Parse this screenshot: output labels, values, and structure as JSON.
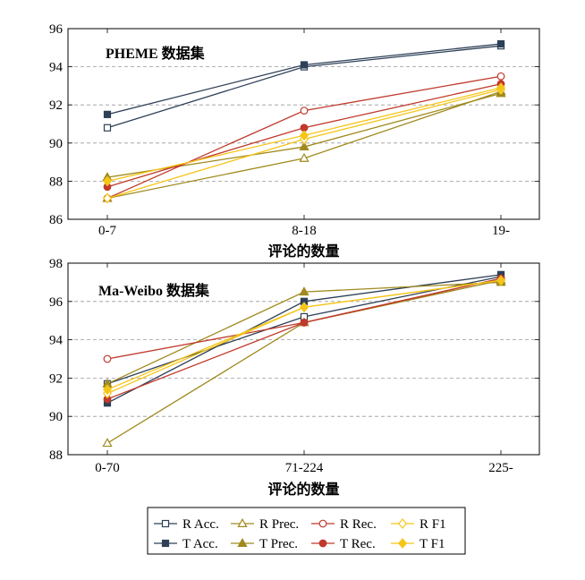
{
  "chart_data": [
    {
      "type": "line",
      "title": "PHEME 数据集",
      "xlabel": "评论的数量",
      "ylabel": "",
      "categories": [
        "0-7",
        "8-18",
        "19-"
      ],
      "ylim": [
        86,
        96
      ],
      "yticks": [
        86,
        88,
        90,
        92,
        94,
        96
      ],
      "grid": "horizontal dashed",
      "series": [
        {
          "name": "R Acc.",
          "values": [
            90.8,
            94.0,
            95.1
          ]
        },
        {
          "name": "T Acc.",
          "values": [
            91.5,
            94.1,
            95.2
          ]
        },
        {
          "name": "R Prec.",
          "values": [
            87.1,
            89.2,
            92.7
          ]
        },
        {
          "name": "T Prec.",
          "values": [
            88.2,
            89.8,
            92.6
          ]
        },
        {
          "name": "R Rec.",
          "values": [
            87.1,
            91.7,
            93.5
          ]
        },
        {
          "name": "T Rec.",
          "values": [
            87.7,
            90.8,
            93.1
          ]
        },
        {
          "name": "R F1",
          "values": [
            87.1,
            90.2,
            92.8
          ]
        },
        {
          "name": "T F1",
          "values": [
            88.0,
            90.4,
            92.9
          ]
        }
      ]
    },
    {
      "type": "line",
      "title": "Ma-Weibo 数据集",
      "xlabel": "评论的数量",
      "ylabel": "",
      "categories": [
        "0-70",
        "71-224",
        "225-"
      ],
      "ylim": [
        88,
        98
      ],
      "yticks": [
        88,
        90,
        92,
        94,
        96,
        98
      ],
      "grid": "horizontal dashed",
      "series": [
        {
          "name": "R Acc.",
          "values": [
            91.7,
            95.2,
            97.3
          ]
        },
        {
          "name": "T Acc.",
          "values": [
            90.7,
            96.0,
            97.4
          ]
        },
        {
          "name": "R Prec.",
          "values": [
            88.6,
            94.9,
            97.1
          ]
        },
        {
          "name": "T Prec.",
          "values": [
            91.7,
            96.5,
            97.0
          ]
        },
        {
          "name": "R Rec.",
          "values": [
            93.0,
            94.9,
            97.2
          ]
        },
        {
          "name": "T Rec.",
          "values": [
            90.9,
            94.9,
            97.2
          ]
        },
        {
          "name": "R F1",
          "values": [
            91.2,
            95.7,
            97.1
          ]
        },
        {
          "name": "T F1",
          "values": [
            91.4,
            95.7,
            97.1
          ]
        }
      ]
    }
  ],
  "legend": {
    "placement": "bottom-center",
    "entries": [
      {
        "label": "R Acc.",
        "color": "#2e4057",
        "marker": "square",
        "fill": "open"
      },
      {
        "label": "R Prec.",
        "color": "#a08a1e",
        "marker": "triangle",
        "fill": "open"
      },
      {
        "label": "R Rec.",
        "color": "#c0392b",
        "marker": "circle",
        "fill": "open"
      },
      {
        "label": "R F1",
        "color": "#f5c518",
        "marker": "diamond",
        "fill": "open"
      },
      {
        "label": "T Acc.",
        "color": "#2e4057",
        "marker": "square",
        "fill": "filled"
      },
      {
        "label": "T Prec.",
        "color": "#a08a1e",
        "marker": "triangle",
        "fill": "filled"
      },
      {
        "label": "T Rec.",
        "color": "#c0392b",
        "marker": "circle",
        "fill": "filled"
      },
      {
        "label": "T F1",
        "color": "#f5c518",
        "marker": "diamond",
        "fill": "filled"
      }
    ]
  },
  "colors": {
    "acc": "#2e4057",
    "prec": "#a08a1e",
    "rec": "#c0392b",
    "f1": "#f5c518",
    "grid": "#999999",
    "axis": "#000000"
  }
}
